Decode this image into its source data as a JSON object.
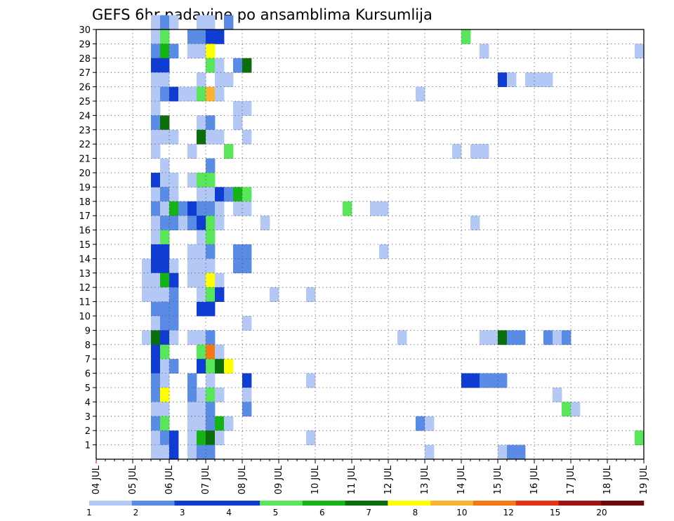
{
  "chart_data": {
    "type": "heatmap",
    "title": "GEFS 6hr padavine po ansamblima Kursumlija",
    "xlabel": "",
    "ylabel": "",
    "x_tick_labels": [
      "04 JUL",
      "05 JUL",
      "06 JUL",
      "07 JUL",
      "08 JUL",
      "09 JUL",
      "10 JUL",
      "11 JUL",
      "12 JUL",
      "13 JUL",
      "14 JUL",
      "15 JUL",
      "16 JUL",
      "17 JUL",
      "18 JUL",
      "19 JUL"
    ],
    "y_tick_labels": [
      "1",
      "2",
      "3",
      "4",
      "5",
      "6",
      "7",
      "8",
      "9",
      "10",
      "11",
      "12",
      "13",
      "14",
      "15",
      "16",
      "17",
      "18",
      "19",
      "20",
      "21",
      "22",
      "23",
      "24",
      "25",
      "26",
      "27",
      "28",
      "29",
      "30"
    ],
    "x_unit": "6h step from 04 JUL 00 UTC",
    "x_range": [
      0,
      60
    ],
    "y_range": [
      0,
      30
    ],
    "grid": true,
    "colorbar": {
      "position": "bottom",
      "labels": [
        "1",
        "2",
        "3",
        "4",
        "5",
        "6",
        "7",
        "8",
        "10",
        "12",
        "15",
        "20"
      ],
      "colors": [
        "#b4c8f5",
        "#5a8ce6",
        "#0f3cd2",
        "#0f3cd2",
        "#5ae65a",
        "#14b414",
        "#0a6e0a",
        "#ffff00",
        "#fab432",
        "#f57814",
        "#e63214",
        "#a01414",
        "#6e0a0a"
      ]
    },
    "cells": [
      [
        5,
        13,
        1
      ],
      [
        5,
        12,
        1
      ],
      [
        5,
        11,
        1
      ],
      [
        5,
        8,
        1
      ],
      [
        6,
        30,
        1
      ],
      [
        6,
        29,
        1
      ],
      [
        6,
        28,
        2
      ],
      [
        6,
        27,
        3
      ],
      [
        6,
        26,
        1
      ],
      [
        6,
        25,
        1
      ],
      [
        6,
        24,
        1
      ],
      [
        6,
        23,
        2
      ],
      [
        6,
        22,
        1
      ],
      [
        6,
        21,
        1
      ],
      [
        6,
        18,
        1
      ],
      [
        6,
        17,
        2
      ],
      [
        6,
        16,
        1
      ],
      [
        6,
        15,
        1
      ],
      [
        6,
        14,
        3
      ],
      [
        6,
        13,
        3
      ],
      [
        6,
        12,
        1
      ],
      [
        6,
        10,
        2
      ],
      [
        6,
        9,
        1
      ],
      [
        6,
        8,
        7
      ],
      [
        6,
        7,
        3
      ],
      [
        6,
        6,
        3
      ],
      [
        6,
        5,
        2
      ],
      [
        6,
        4,
        2
      ],
      [
        6,
        3,
        1
      ],
      [
        6,
        2,
        2
      ],
      [
        6,
        1,
        1
      ],
      [
        6,
        0,
        1
      ],
      [
        6,
        19,
        3
      ],
      [
        6,
        11,
        1
      ],
      [
        7,
        30,
        2
      ],
      [
        7,
        29,
        5
      ],
      [
        7,
        28,
        6
      ],
      [
        7,
        27,
        3
      ],
      [
        7,
        26,
        1
      ],
      [
        7,
        25,
        2
      ],
      [
        7,
        23,
        7
      ],
      [
        7,
        22,
        1
      ],
      [
        7,
        20,
        1
      ],
      [
        7,
        19,
        1
      ],
      [
        7,
        18,
        2
      ],
      [
        7,
        17,
        1
      ],
      [
        7,
        16,
        2
      ],
      [
        7,
        15,
        5
      ],
      [
        7,
        14,
        3
      ],
      [
        7,
        13,
        3
      ],
      [
        7,
        12,
        6
      ],
      [
        7,
        11,
        1
      ],
      [
        7,
        10,
        2
      ],
      [
        7,
        9,
        2
      ],
      [
        7,
        8,
        3
      ],
      [
        7,
        7,
        5
      ],
      [
        7,
        6,
        1
      ],
      [
        7,
        5,
        1
      ],
      [
        7,
        4,
        8
      ],
      [
        7,
        3,
        1
      ],
      [
        7,
        2,
        5
      ],
      [
        7,
        1,
        2
      ],
      [
        7,
        0,
        1
      ],
      [
        8,
        30,
        1
      ],
      [
        8,
        28,
        2
      ],
      [
        8,
        25,
        3
      ],
      [
        8,
        22,
        1
      ],
      [
        8,
        18,
        1
      ],
      [
        8,
        17,
        6
      ],
      [
        8,
        16,
        2
      ],
      [
        8,
        13,
        1
      ],
      [
        8,
        12,
        3
      ],
      [
        8,
        10,
        2
      ],
      [
        8,
        9,
        2
      ],
      [
        8,
        8,
        1
      ],
      [
        8,
        6,
        2
      ],
      [
        8,
        1,
        3
      ],
      [
        8,
        0,
        3
      ],
      [
        8,
        19,
        1
      ],
      [
        8,
        11,
        2
      ],
      [
        9,
        25,
        1
      ],
      [
        9,
        17,
        2
      ],
      [
        9,
        16,
        1
      ],
      [
        10,
        29,
        2
      ],
      [
        10,
        28,
        1
      ],
      [
        10,
        25,
        1
      ],
      [
        10,
        21,
        1
      ],
      [
        10,
        17,
        3
      ],
      [
        10,
        16,
        2
      ],
      [
        10,
        14,
        1
      ],
      [
        10,
        13,
        1
      ],
      [
        10,
        12,
        1
      ],
      [
        10,
        8,
        1
      ],
      [
        10,
        5,
        2
      ],
      [
        10,
        4,
        2
      ],
      [
        10,
        3,
        1
      ],
      [
        10,
        2,
        1
      ],
      [
        10,
        1,
        1
      ],
      [
        10,
        0,
        1
      ],
      [
        10,
        19,
        1
      ],
      [
        11,
        30,
        1
      ],
      [
        11,
        29,
        2
      ],
      [
        11,
        28,
        1
      ],
      [
        11,
        26,
        1
      ],
      [
        11,
        25,
        5
      ],
      [
        11,
        23,
        1
      ],
      [
        11,
        22,
        7
      ],
      [
        11,
        18,
        1
      ],
      [
        11,
        17,
        2
      ],
      [
        11,
        16,
        3
      ],
      [
        11,
        15,
        1
      ],
      [
        11,
        14,
        1
      ],
      [
        11,
        13,
        1
      ],
      [
        11,
        12,
        1
      ],
      [
        11,
        10,
        3
      ],
      [
        11,
        8,
        1
      ],
      [
        11,
        7,
        5
      ],
      [
        11,
        6,
        3
      ],
      [
        11,
        4,
        1
      ],
      [
        11,
        3,
        1
      ],
      [
        11,
        2,
        1
      ],
      [
        11,
        1,
        6
      ],
      [
        11,
        0,
        2
      ],
      [
        11,
        19,
        5
      ],
      [
        11,
        11,
        1
      ],
      [
        12,
        30,
        1
      ],
      [
        12,
        29,
        3
      ],
      [
        12,
        28,
        8
      ],
      [
        12,
        27,
        5
      ],
      [
        12,
        25,
        9
      ],
      [
        12,
        23,
        2
      ],
      [
        12,
        22,
        1
      ],
      [
        12,
        20,
        2
      ],
      [
        12,
        19,
        5
      ],
      [
        12,
        18,
        1
      ],
      [
        12,
        17,
        2
      ],
      [
        12,
        16,
        5
      ],
      [
        12,
        15,
        5
      ],
      [
        12,
        14,
        2
      ],
      [
        12,
        13,
        1
      ],
      [
        12,
        12,
        8
      ],
      [
        12,
        11,
        5
      ],
      [
        12,
        10,
        3
      ],
      [
        12,
        8,
        2
      ],
      [
        12,
        7,
        10
      ],
      [
        12,
        6,
        5
      ],
      [
        12,
        5,
        1
      ],
      [
        12,
        4,
        5
      ],
      [
        12,
        3,
        2
      ],
      [
        12,
        2,
        2
      ],
      [
        12,
        1,
        7
      ],
      [
        12,
        0,
        2
      ],
      [
        13,
        29,
        3
      ],
      [
        13,
        27,
        1
      ],
      [
        13,
        26,
        1
      ],
      [
        13,
        25,
        1
      ],
      [
        13,
        22,
        1
      ],
      [
        13,
        18,
        3
      ],
      [
        13,
        17,
        1
      ],
      [
        13,
        16,
        1
      ],
      [
        13,
        12,
        1
      ],
      [
        13,
        11,
        3
      ],
      [
        13,
        7,
        1
      ],
      [
        13,
        6,
        7
      ],
      [
        13,
        4,
        1
      ],
      [
        13,
        2,
        6
      ],
      [
        13,
        1,
        1
      ],
      [
        14,
        30,
        2
      ],
      [
        14,
        26,
        1
      ],
      [
        14,
        21,
        5
      ],
      [
        14,
        18,
        2
      ],
      [
        14,
        6,
        8
      ],
      [
        14,
        2,
        1
      ],
      [
        15,
        27,
        2
      ],
      [
        15,
        24,
        1
      ],
      [
        15,
        23,
        1
      ],
      [
        15,
        18,
        6
      ],
      [
        15,
        17,
        1
      ],
      [
        15,
        14,
        2
      ],
      [
        15,
        13,
        2
      ],
      [
        16,
        27,
        7
      ],
      [
        16,
        24,
        1
      ],
      [
        16,
        22,
        1
      ],
      [
        16,
        18,
        5
      ],
      [
        16,
        17,
        1
      ],
      [
        16,
        14,
        2
      ],
      [
        16,
        13,
        2
      ],
      [
        16,
        9,
        1
      ],
      [
        16,
        5,
        3
      ],
      [
        16,
        4,
        1
      ],
      [
        16,
        3,
        2
      ],
      [
        18,
        16,
        1
      ],
      [
        19,
        11,
        1
      ],
      [
        23,
        11,
        1
      ],
      [
        23,
        5,
        1
      ],
      [
        23,
        1,
        1
      ],
      [
        27,
        17,
        5
      ],
      [
        30,
        17,
        1
      ],
      [
        31,
        17,
        1
      ],
      [
        31,
        14,
        1
      ],
      [
        33,
        8,
        1
      ],
      [
        35,
        25,
        1
      ],
      [
        35,
        2,
        2
      ],
      [
        36,
        2,
        1
      ],
      [
        36,
        0,
        1
      ],
      [
        39,
        21,
        1
      ],
      [
        40,
        29,
        5
      ],
      [
        40,
        5,
        3
      ],
      [
        41,
        21,
        1
      ],
      [
        41,
        16,
        1
      ],
      [
        41,
        5,
        3
      ],
      [
        42,
        28,
        1
      ],
      [
        42,
        21,
        1
      ],
      [
        42,
        8,
        1
      ],
      [
        42,
        5,
        2
      ],
      [
        43,
        8,
        1
      ],
      [
        43,
        5,
        2
      ],
      [
        44,
        26,
        3
      ],
      [
        44,
        8,
        7
      ],
      [
        44,
        5,
        2
      ],
      [
        44,
        0,
        1
      ],
      [
        45,
        26,
        1
      ],
      [
        45,
        8,
        2
      ],
      [
        45,
        0,
        2
      ],
      [
        46,
        8,
        2
      ],
      [
        46,
        0,
        2
      ],
      [
        47,
        26,
        1
      ],
      [
        48,
        26,
        1
      ],
      [
        49,
        26,
        1
      ],
      [
        49,
        8,
        2
      ],
      [
        50,
        8,
        1
      ],
      [
        50,
        4,
        1
      ],
      [
        51,
        8,
        2
      ],
      [
        51,
        3,
        5
      ],
      [
        52,
        3,
        1
      ],
      [
        59,
        28,
        1
      ],
      [
        59,
        1,
        5
      ]
    ]
  }
}
